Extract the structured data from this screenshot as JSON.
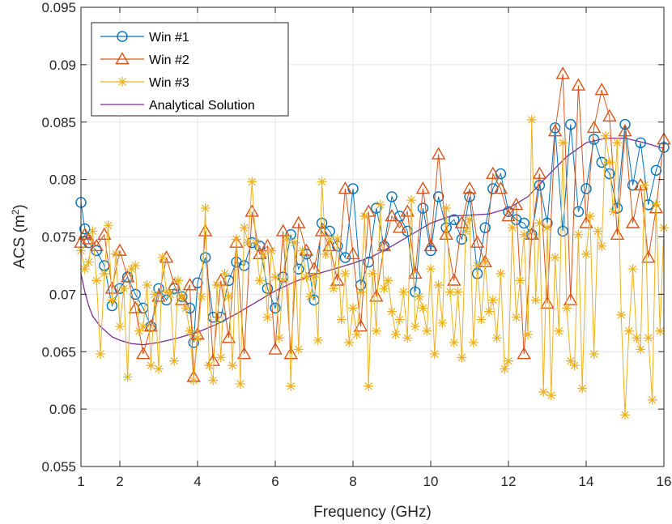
{
  "chart_data": {
    "type": "line",
    "xlabel": "Frequency (GHz)",
    "ylabel_main": "ACS (m",
    "ylabel_sup": "2",
    "ylabel_close": ")",
    "xlim": [
      1,
      16
    ],
    "ylim": [
      0.055,
      0.095
    ],
    "xticks": [
      1,
      2,
      4,
      6,
      8,
      10,
      12,
      14,
      16
    ],
    "xtick_labels": [
      "1",
      "2",
      "4",
      "6",
      "8",
      "10",
      "12",
      "14",
      "16"
    ],
    "yticks": [
      0.055,
      0.06,
      0.065,
      0.07,
      0.075,
      0.08,
      0.085,
      0.09,
      0.095
    ],
    "ytick_labels": [
      "0.055",
      "0.06",
      "0.065",
      "0.07",
      "0.075",
      "0.08",
      "0.085",
      "0.09",
      "0.095"
    ],
    "grid": true,
    "legend_position": "top-left",
    "series": [
      {
        "name": "Win #1",
        "color": "#0072BD",
        "marker": "circle",
        "x": [
          1.0,
          1.1,
          1.2,
          1.4,
          1.6,
          1.8,
          2.0,
          2.2,
          2.4,
          2.6,
          2.8,
          3.0,
          3.2,
          3.4,
          3.6,
          3.8,
          3.9,
          4.0,
          4.2,
          4.4,
          4.6,
          4.8,
          5.0,
          5.2,
          5.4,
          5.6,
          5.8,
          6.0,
          6.2,
          6.4,
          6.6,
          6.8,
          7.0,
          7.2,
          7.4,
          7.6,
          7.8,
          8.0,
          8.2,
          8.4,
          8.6,
          8.8,
          9.0,
          9.2,
          9.4,
          9.6,
          9.8,
          10.0,
          10.2,
          10.4,
          10.6,
          10.8,
          11.0,
          11.2,
          11.4,
          11.6,
          11.8,
          12.0,
          12.2,
          12.4,
          12.6,
          12.8,
          13.0,
          13.2,
          13.4,
          13.6,
          13.8,
          14.0,
          14.2,
          14.4,
          14.6,
          14.8,
          15.0,
          15.2,
          15.4,
          15.6,
          15.8,
          16.0
        ],
        "y": [
          0.078,
          0.0757,
          0.0745,
          0.0738,
          0.0725,
          0.069,
          0.0705,
          0.0715,
          0.07,
          0.0688,
          0.0672,
          0.0705,
          0.0695,
          0.0705,
          0.0698,
          0.0688,
          0.0658,
          0.071,
          0.0732,
          0.068,
          0.068,
          0.0712,
          0.0728,
          0.0725,
          0.0745,
          0.0742,
          0.0705,
          0.0688,
          0.0715,
          0.0752,
          0.0722,
          0.0735,
          0.0695,
          0.0762,
          0.0755,
          0.0742,
          0.0732,
          0.0792,
          0.0708,
          0.0728,
          0.0775,
          0.0742,
          0.0785,
          0.0768,
          0.0755,
          0.0702,
          0.0775,
          0.0738,
          0.0785,
          0.0758,
          0.0765,
          0.0748,
          0.0785,
          0.0718,
          0.0758,
          0.0792,
          0.0805,
          0.0772,
          0.0765,
          0.0762,
          0.0752,
          0.0795,
          0.0762,
          0.0845,
          0.0755,
          0.0848,
          0.0772,
          0.0792,
          0.0835,
          0.0815,
          0.0805,
          0.0775,
          0.0848,
          0.0795,
          0.0832,
          0.0778,
          0.0808,
          0.0828
        ]
      },
      {
        "name": "Win #2",
        "color": "#D95319",
        "marker": "triangle",
        "x": [
          1.0,
          1.1,
          1.2,
          1.4,
          1.6,
          1.8,
          2.0,
          2.2,
          2.4,
          2.6,
          2.8,
          3.0,
          3.2,
          3.4,
          3.6,
          3.8,
          3.9,
          4.0,
          4.2,
          4.4,
          4.6,
          4.8,
          5.0,
          5.2,
          5.4,
          5.6,
          5.8,
          6.0,
          6.2,
          6.4,
          6.6,
          6.8,
          7.0,
          7.2,
          7.4,
          7.6,
          7.8,
          8.0,
          8.2,
          8.4,
          8.6,
          8.8,
          9.0,
          9.2,
          9.4,
          9.6,
          9.8,
          10.0,
          10.2,
          10.4,
          10.6,
          10.8,
          11.0,
          11.2,
          11.4,
          11.6,
          11.8,
          12.0,
          12.2,
          12.4,
          12.6,
          12.8,
          13.0,
          13.2,
          13.4,
          13.6,
          13.8,
          14.0,
          14.2,
          14.4,
          14.6,
          14.8,
          15.0,
          15.2,
          15.4,
          15.6,
          15.8,
          16.0
        ],
        "y": [
          0.0745,
          0.0752,
          0.0748,
          0.0742,
          0.0752,
          0.0705,
          0.0738,
          0.0715,
          0.0688,
          0.0648,
          0.0672,
          0.0698,
          0.0732,
          0.0708,
          0.0695,
          0.0708,
          0.0628,
          0.0665,
          0.0755,
          0.0642,
          0.0712,
          0.0662,
          0.0745,
          0.0648,
          0.0772,
          0.0735,
          0.0742,
          0.0652,
          0.0755,
          0.0648,
          0.0762,
          0.0738,
          0.0722,
          0.0755,
          0.0742,
          0.0712,
          0.0792,
          0.0735,
          0.0672,
          0.0772,
          0.0698,
          0.0742,
          0.0768,
          0.0758,
          0.0772,
          0.0718,
          0.0792,
          0.0742,
          0.0822,
          0.0752,
          0.0712,
          0.0762,
          0.0792,
          0.0745,
          0.0728,
          0.0805,
          0.0792,
          0.0768,
          0.0778,
          0.0648,
          0.0752,
          0.0805,
          0.0692,
          0.0842,
          0.0892,
          0.0695,
          0.0882,
          0.0762,
          0.0845,
          0.0878,
          0.0855,
          0.0752,
          0.0842,
          0.0762,
          0.0795,
          0.0732,
          0.0775,
          0.0835
        ]
      },
      {
        "name": "Win #3",
        "color": "#EDB120",
        "marker": "star",
        "x": [
          1.0,
          1.1,
          1.2,
          1.3,
          1.4,
          1.5,
          1.6,
          1.7,
          1.8,
          1.9,
          2.0,
          2.1,
          2.2,
          2.3,
          2.4,
          2.5,
          2.6,
          2.7,
          2.8,
          2.9,
          3.0,
          3.1,
          3.2,
          3.3,
          3.4,
          3.5,
          3.6,
          3.7,
          3.8,
          3.9,
          4.0,
          4.1,
          4.2,
          4.3,
          4.4,
          4.5,
          4.6,
          4.7,
          4.8,
          4.9,
          5.0,
          5.1,
          5.2,
          5.3,
          5.4,
          5.5,
          5.6,
          5.7,
          5.8,
          5.9,
          6.0,
          6.1,
          6.2,
          6.3,
          6.4,
          6.5,
          6.6,
          6.7,
          6.8,
          6.9,
          7.0,
          7.1,
          7.2,
          7.3,
          7.4,
          7.5,
          7.6,
          7.7,
          7.8,
          7.9,
          8.0,
          8.1,
          8.2,
          8.3,
          8.4,
          8.5,
          8.6,
          8.7,
          8.8,
          8.9,
          9.0,
          9.1,
          9.2,
          9.3,
          9.4,
          9.5,
          9.6,
          9.7,
          9.8,
          9.9,
          10.0,
          10.1,
          10.2,
          10.3,
          10.4,
          10.5,
          10.6,
          10.7,
          10.8,
          10.9,
          11.0,
          11.1,
          11.2,
          11.3,
          11.4,
          11.5,
          11.6,
          11.7,
          11.8,
          11.9,
          12.0,
          12.1,
          12.2,
          12.3,
          12.4,
          12.5,
          12.6,
          12.7,
          12.8,
          12.9,
          13.0,
          13.1,
          13.2,
          13.3,
          13.4,
          13.5,
          13.6,
          13.7,
          13.8,
          13.9,
          14.0,
          14.1,
          14.2,
          14.3,
          14.4,
          14.5,
          14.6,
          14.7,
          14.8,
          14.9,
          15.0,
          15.1,
          15.2,
          15.3,
          15.4,
          15.5,
          15.6,
          15.7,
          15.8,
          15.9,
          16.0
        ],
        "y": [
          0.0738,
          0.0722,
          0.0728,
          0.0755,
          0.0712,
          0.0648,
          0.0718,
          0.076,
          0.0695,
          0.0735,
          0.0672,
          0.0705,
          0.0628,
          0.0722,
          0.0725,
          0.0668,
          0.0672,
          0.0708,
          0.0638,
          0.07,
          0.0635,
          0.0732,
          0.0702,
          0.07,
          0.0642,
          0.0712,
          0.0698,
          0.0688,
          0.0668,
          0.0625,
          0.0662,
          0.0698,
          0.0775,
          0.0638,
          0.0625,
          0.0708,
          0.0645,
          0.0718,
          0.0698,
          0.0638,
          0.0748,
          0.0622,
          0.0758,
          0.0745,
          0.0798,
          0.0745,
          0.0712,
          0.0735,
          0.068,
          0.0738,
          0.0715,
          0.0662,
          0.0712,
          0.0748,
          0.062,
          0.0745,
          0.0652,
          0.0738,
          0.0715,
          0.0698,
          0.0715,
          0.066,
          0.0798,
          0.0735,
          0.0748,
          0.0705,
          0.0748,
          0.0678,
          0.0718,
          0.0658,
          0.0688,
          0.0665,
          0.0702,
          0.0768,
          0.062,
          0.0718,
          0.0668,
          0.0778,
          0.0705,
          0.0712,
          0.0685,
          0.0665,
          0.0678,
          0.0702,
          0.0662,
          0.0782,
          0.0672,
          0.0698,
          0.0688,
          0.0668,
          0.0722,
          0.0648,
          0.0708,
          0.0675,
          0.0775,
          0.0702,
          0.0658,
          0.0702,
          0.0645,
          0.0755,
          0.0765,
          0.0658,
          0.0725,
          0.0678,
          0.0728,
          0.0685,
          0.0695,
          0.0662,
          0.0718,
          0.0635,
          0.0642,
          0.0758,
          0.068,
          0.0712,
          0.0752,
          0.0665,
          0.0852,
          0.0695,
          0.0762,
          0.0615,
          0.0758,
          0.0612,
          0.0732,
          0.0668,
          0.0832,
          0.0688,
          0.0642,
          0.0638,
          0.0752,
          0.0618,
          0.0735,
          0.0768,
          0.0648,
          0.0755,
          0.0742,
          0.0838,
          0.0815,
          0.0772,
          0.0832,
          0.0682,
          0.0595,
          0.0668,
          0.0722,
          0.0662,
          0.0652,
          0.0795,
          0.0662,
          0.0608,
          0.0778,
          0.0668,
          0.0758
        ]
      },
      {
        "name": "Analytical Solution",
        "color": "#7E2F8E",
        "marker": "none",
        "x": [
          1.0,
          1.1,
          1.2,
          1.3,
          1.5,
          1.8,
          2.0,
          2.3,
          2.6,
          3.0,
          3.5,
          4.0,
          4.5,
          5.0,
          5.5,
          6.0,
          6.5,
          7.0,
          7.5,
          8.0,
          8.5,
          9.0,
          9.5,
          10.0,
          10.5,
          11.0,
          11.5,
          12.0,
          12.5,
          13.0,
          13.5,
          14.0,
          14.5,
          15.0,
          15.5,
          16.0
        ],
        "y": [
          0.0718,
          0.0702,
          0.069,
          0.0681,
          0.0672,
          0.0663,
          0.066,
          0.0657,
          0.0656,
          0.0658,
          0.0662,
          0.0667,
          0.0674,
          0.0683,
          0.0693,
          0.0703,
          0.0711,
          0.0717,
          0.0722,
          0.0727,
          0.0733,
          0.0742,
          0.0752,
          0.0762,
          0.0768,
          0.0769,
          0.077,
          0.0775,
          0.0785,
          0.0803,
          0.082,
          0.0832,
          0.0836,
          0.0836,
          0.0832,
          0.0827
        ]
      }
    ]
  }
}
